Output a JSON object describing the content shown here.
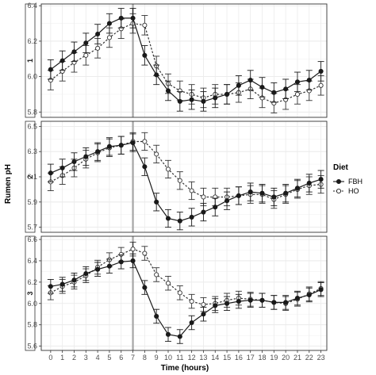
{
  "chart_data": {
    "type": "line",
    "xlabel": "Time (hours)",
    "ylabel": "Rumen pH",
    "x": [
      0,
      1,
      2,
      3,
      4,
      5,
      6,
      7,
      8,
      9,
      10,
      11,
      12,
      13,
      14,
      15,
      16,
      17,
      18,
      19,
      20,
      21,
      22,
      23
    ],
    "x_ticks": [
      "0",
      "1",
      "2",
      "3",
      "4",
      "5",
      "6",
      "7",
      "8",
      "9",
      "10",
      "11",
      "12",
      "13",
      "14",
      "15",
      "16",
      "17",
      "18",
      "19",
      "20",
      "21",
      "22",
      "23"
    ],
    "reference_line_x": 7,
    "grid": true,
    "legend": {
      "title": "Diet",
      "position": "right",
      "entries": [
        {
          "label": "FBH",
          "marker": "filled-circle",
          "line": "solid"
        },
        {
          "label": "HO",
          "marker": "open-circle",
          "line": "dotted"
        }
      ]
    },
    "panels": [
      {
        "strip": "1",
        "ylim": [
          5.77,
          6.41
        ],
        "y_ticks": [
          "5.8",
          "6.0",
          "6.2",
          "6.4"
        ],
        "y_tick_values": [
          5.8,
          6.0,
          6.2,
          6.4
        ],
        "error": 0.055,
        "series": [
          {
            "name": "FBH",
            "values": [
              6.04,
              6.09,
              6.14,
              6.19,
              6.24,
              6.3,
              6.33,
              6.33,
              6.12,
              6.01,
              5.92,
              5.86,
              5.87,
              5.86,
              5.88,
              5.9,
              5.95,
              5.98,
              5.94,
              5.91,
              5.93,
              5.97,
              5.98,
              6.03
            ]
          },
          {
            "name": "HO",
            "values": [
              5.98,
              6.03,
              6.08,
              6.12,
              6.16,
              6.22,
              6.27,
              6.3,
              6.29,
              6.06,
              5.96,
              5.92,
              5.9,
              5.88,
              5.9,
              5.9,
              5.91,
              5.93,
              5.88,
              5.85,
              5.87,
              5.9,
              5.92,
              5.95
            ]
          }
        ]
      },
      {
        "strip": "2",
        "ylim": [
          5.66,
          6.54
        ],
        "y_ticks": [
          "5.7",
          "5.9",
          "6.1",
          "6.3",
          "6.5"
        ],
        "y_tick_values": [
          5.7,
          5.9,
          6.1,
          6.3,
          6.5
        ],
        "error": 0.07,
        "series": [
          {
            "name": "FBH",
            "values": [
              6.13,
              6.17,
              6.22,
              6.26,
              6.3,
              6.34,
              6.35,
              6.37,
              6.18,
              5.9,
              5.77,
              5.75,
              5.78,
              5.82,
              5.86,
              5.91,
              5.95,
              5.98,
              5.97,
              5.94,
              5.97,
              6.01,
              6.05,
              6.08
            ]
          },
          {
            "name": "HO",
            "values": [
              6.06,
              6.11,
              6.17,
              6.24,
              6.29,
              6.33,
              6.35,
              6.38,
              6.38,
              6.28,
              6.16,
              6.07,
              5.99,
              5.94,
              5.94,
              5.94,
              5.95,
              5.96,
              5.96,
              5.92,
              5.96,
              6.0,
              6.03,
              6.04
            ]
          }
        ]
      },
      {
        "strip": "3",
        "ylim": [
          5.56,
          6.63
        ],
        "y_ticks": [
          "5.6",
          "5.8",
          "6.0",
          "6.2",
          "6.4",
          "6.6"
        ],
        "y_tick_values": [
          5.6,
          5.8,
          6.0,
          6.2,
          6.4,
          6.6
        ],
        "error": 0.065,
        "series": [
          {
            "name": "FBH",
            "values": [
              6.16,
              6.18,
              6.22,
              6.28,
              6.32,
              6.35,
              6.39,
              6.4,
              6.15,
              5.88,
              5.71,
              5.69,
              5.82,
              5.9,
              5.98,
              6.0,
              6.02,
              6.03,
              6.03,
              6.01,
              6.01,
              6.05,
              6.08,
              6.13
            ]
          },
          {
            "name": "HO",
            "values": [
              6.1,
              6.16,
              6.2,
              6.26,
              6.34,
              6.41,
              6.46,
              6.51,
              6.47,
              6.27,
              6.19,
              6.1,
              6.02,
              5.99,
              6.0,
              6.03,
              6.05,
              6.04,
              6.03,
              6.01,
              6.0,
              6.04,
              6.09,
              6.14
            ]
          }
        ]
      }
    ]
  }
}
